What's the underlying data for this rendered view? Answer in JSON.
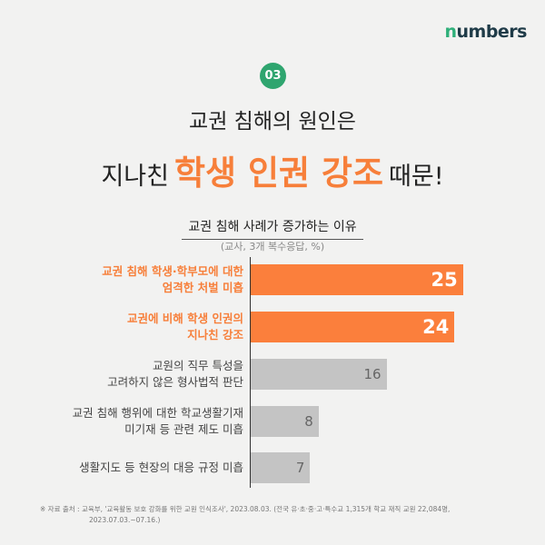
{
  "brand": "numbers",
  "badge": "03",
  "title_line1": "교권 침해의 원인은",
  "title_line2": {
    "pre": "지나친",
    "highlight": "학생 인권 강조",
    "post": "때문!"
  },
  "chart_data": {
    "type": "bar",
    "orientation": "horizontal",
    "title": "교권 침해 사례가 증가하는 이유",
    "subtitle": "(교사, 3개 복수응답, %)",
    "categories": [
      "교권 침해 학생·학부모에 대한 엄격한 처벌 미흡",
      "교권에 비해 학생 인권의 지나친 강조",
      "교원의 직무 특성을 고려하지 않은 형사법적 판단",
      "교권 침해 행위에 대한 학교생활기재 미기재 등 관련 제도 미흡",
      "생활지도 등 현장의 대응 규정 미흡"
    ],
    "label_lines": [
      [
        "교권 침해 학생·학부모에 대한",
        "엄격한 처벌 미흡"
      ],
      [
        "교권에 비해 학생 인권의",
        "지나친 강조"
      ],
      [
        "교원의 직무 특성을",
        "고려하지 않은 형사법적 판단"
      ],
      [
        "교권 침해 행위에 대한 학교생활기재",
        "미기재 등 관련 제도 미흡"
      ],
      [
        "생활지도 등 현장의 대응 규정 미흡"
      ]
    ],
    "values": [
      25,
      24,
      16,
      8,
      7
    ],
    "highlighted": [
      true,
      true,
      false,
      false,
      false
    ],
    "colors": {
      "highlight": "#fb7f3c",
      "normal": "#c4c4c4"
    }
  },
  "source": {
    "label": "※ 자료 출처 :",
    "line1": "교육부, '교육활동 보호 강화를 위한 교원 인식조사', 2023.08.03. (전국 유·초·중·고·특수교 1,315개 학교 재직 교원 22,084명,",
    "line2": "2023.07.03.~07.16.)"
  }
}
